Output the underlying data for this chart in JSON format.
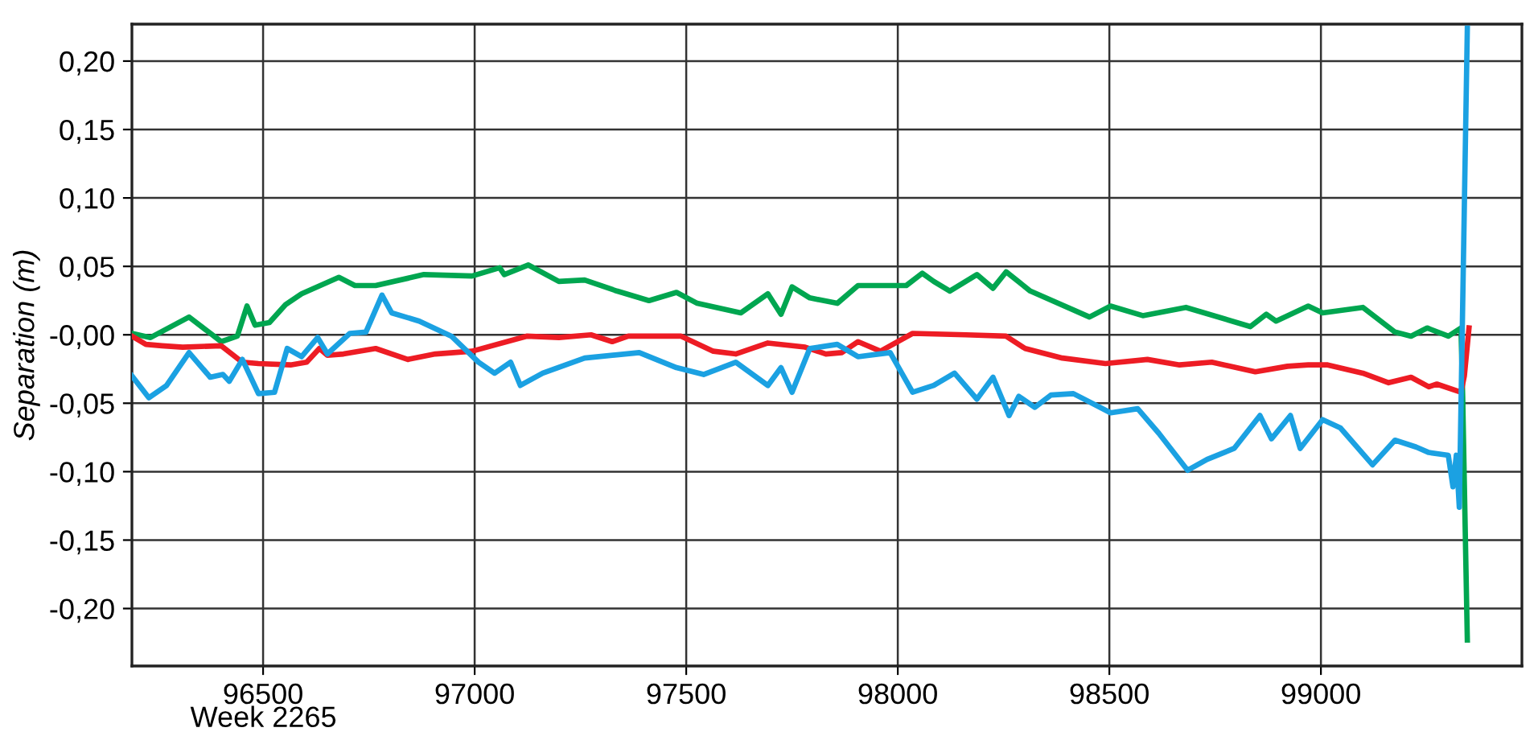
{
  "chart_data": {
    "type": "line",
    "ylabel": "Separation (m)",
    "annotations": [
      "Week 2265"
    ],
    "xlim": [
      96190,
      99475
    ],
    "ylim": [
      -0.242,
      0.227
    ],
    "xticks": [
      96500,
      97000,
      97500,
      98000,
      98500,
      99000
    ],
    "yticks": [
      {
        "value": 0.2,
        "label": "0,20"
      },
      {
        "value": 0.15,
        "label": "0,15"
      },
      {
        "value": 0.1,
        "label": "0,10"
      },
      {
        "value": 0.05,
        "label": "0,05"
      },
      {
        "value": 0,
        "label": "-0,00"
      },
      {
        "value": -0.05,
        "label": "-0,05"
      },
      {
        "value": -0.1,
        "label": "-0,10"
      },
      {
        "value": -0.15,
        "label": "-0,15"
      },
      {
        "value": -0.2,
        "label": "-0,20"
      }
    ],
    "grid": true,
    "line_style": "solid",
    "marker": "none",
    "series": [
      {
        "color": "#00a650",
        "x": [
          96190,
          96234,
          96325,
          96401,
          96439,
          96462,
          96481,
          96515,
          96553,
          96591,
          96679,
          96717,
          96766,
          96880,
          96994,
          97059,
          97070,
          97127,
          97199,
          97260,
          97336,
          97412,
          97477,
          97526,
          97629,
          97693,
          97724,
          97750,
          97792,
          97857,
          97906,
          98020,
          98058,
          98085,
          98123,
          98187,
          98225,
          98256,
          98313,
          98453,
          98503,
          98579,
          98681,
          98833,
          98871,
          98894,
          98970,
          99004,
          99099,
          99175,
          99213,
          99251,
          99301,
          99331,
          99335,
          99346
        ],
        "values": [
          0.001,
          -0.002,
          0.013,
          -0.005,
          -0.001,
          0.021,
          0.007,
          0.009,
          0.022,
          0.03,
          0.042,
          0.036,
          0.036,
          0.044,
          0.043,
          0.049,
          0.044,
          0.051,
          0.039,
          0.04,
          0.032,
          0.025,
          0.031,
          0.023,
          0.016,
          0.03,
          0.015,
          0.035,
          0.027,
          0.023,
          0.036,
          0.036,
          0.045,
          0.039,
          0.032,
          0.044,
          0.034,
          0.046,
          0.032,
          0.013,
          0.021,
          0.014,
          0.02,
          0.006,
          0.015,
          0.01,
          0.021,
          0.016,
          0.02,
          0.002,
          -0.001,
          0.005,
          -0.001,
          0.005,
          -0.045,
          -0.223
        ]
      },
      {
        "color": "#ed1c24",
        "x": [
          96190,
          96223,
          96261,
          96310,
          96401,
          96451,
          96489,
          96565,
          96603,
          96633,
          96652,
          96690,
          96766,
          96842,
          96907,
          96994,
          97123,
          97199,
          97275,
          97325,
          97363,
          97488,
          97564,
          97617,
          97693,
          97781,
          97830,
          97868,
          97906,
          97959,
          98035,
          98161,
          98256,
          98301,
          98389,
          98491,
          98590,
          98666,
          98742,
          98845,
          98921,
          98970,
          99016,
          99099,
          99160,
          99213,
          99255,
          99274,
          99331,
          99339,
          99350
        ],
        "values": [
          -0.001,
          -0.007,
          -0.008,
          -0.009,
          -0.008,
          -0.02,
          -0.021,
          -0.022,
          -0.02,
          -0.01,
          -0.015,
          -0.014,
          -0.01,
          -0.018,
          -0.014,
          -0.012,
          -0.001,
          -0.002,
          0.0,
          -0.005,
          -0.001,
          -0.001,
          -0.012,
          -0.014,
          -0.006,
          -0.009,
          -0.014,
          -0.013,
          -0.005,
          -0.012,
          0.001,
          0.0,
          -0.001,
          -0.01,
          -0.017,
          -0.021,
          -0.018,
          -0.022,
          -0.02,
          -0.027,
          -0.023,
          -0.022,
          -0.022,
          -0.028,
          -0.035,
          -0.031,
          -0.038,
          -0.036,
          -0.042,
          -0.03,
          0.005
        ]
      },
      {
        "color": "#1ba1e2",
        "x": [
          96190,
          96230,
          96272,
          96325,
          96375,
          96405,
          96420,
          96451,
          96489,
          96527,
          96557,
          96591,
          96629,
          96652,
          96705,
          96743,
          96781,
          96804,
          96869,
          96945,
          97009,
          97047,
          97085,
          97108,
          97161,
          97260,
          97389,
          97477,
          97541,
          97617,
          97693,
          97724,
          97750,
          97792,
          97857,
          97906,
          97982,
          98035,
          98085,
          98134,
          98187,
          98225,
          98263,
          98286,
          98324,
          98362,
          98415,
          98503,
          98567,
          98617,
          98685,
          98731,
          98795,
          98856,
          98883,
          98928,
          98951,
          99004,
          99046,
          99122,
          99175,
          99225,
          99255,
          99301,
          99312,
          99320,
          99327,
          99346
        ],
        "values": [
          -0.03,
          -0.046,
          -0.037,
          -0.013,
          -0.031,
          -0.029,
          -0.034,
          -0.018,
          -0.043,
          -0.042,
          -0.01,
          -0.016,
          -0.002,
          -0.014,
          0.001,
          0.002,
          0.029,
          0.016,
          0.01,
          -0.001,
          -0.02,
          -0.028,
          -0.02,
          -0.037,
          -0.028,
          -0.017,
          -0.013,
          -0.024,
          -0.029,
          -0.02,
          -0.037,
          -0.024,
          -0.042,
          -0.01,
          -0.007,
          -0.016,
          -0.013,
          -0.042,
          -0.037,
          -0.028,
          -0.047,
          -0.031,
          -0.059,
          -0.045,
          -0.053,
          -0.044,
          -0.043,
          -0.057,
          -0.054,
          -0.072,
          -0.099,
          -0.091,
          -0.083,
          -0.059,
          -0.076,
          -0.059,
          -0.083,
          -0.062,
          -0.068,
          -0.095,
          -0.077,
          -0.082,
          -0.086,
          -0.088,
          -0.111,
          -0.088,
          -0.126,
          0.224
        ]
      }
    ]
  }
}
